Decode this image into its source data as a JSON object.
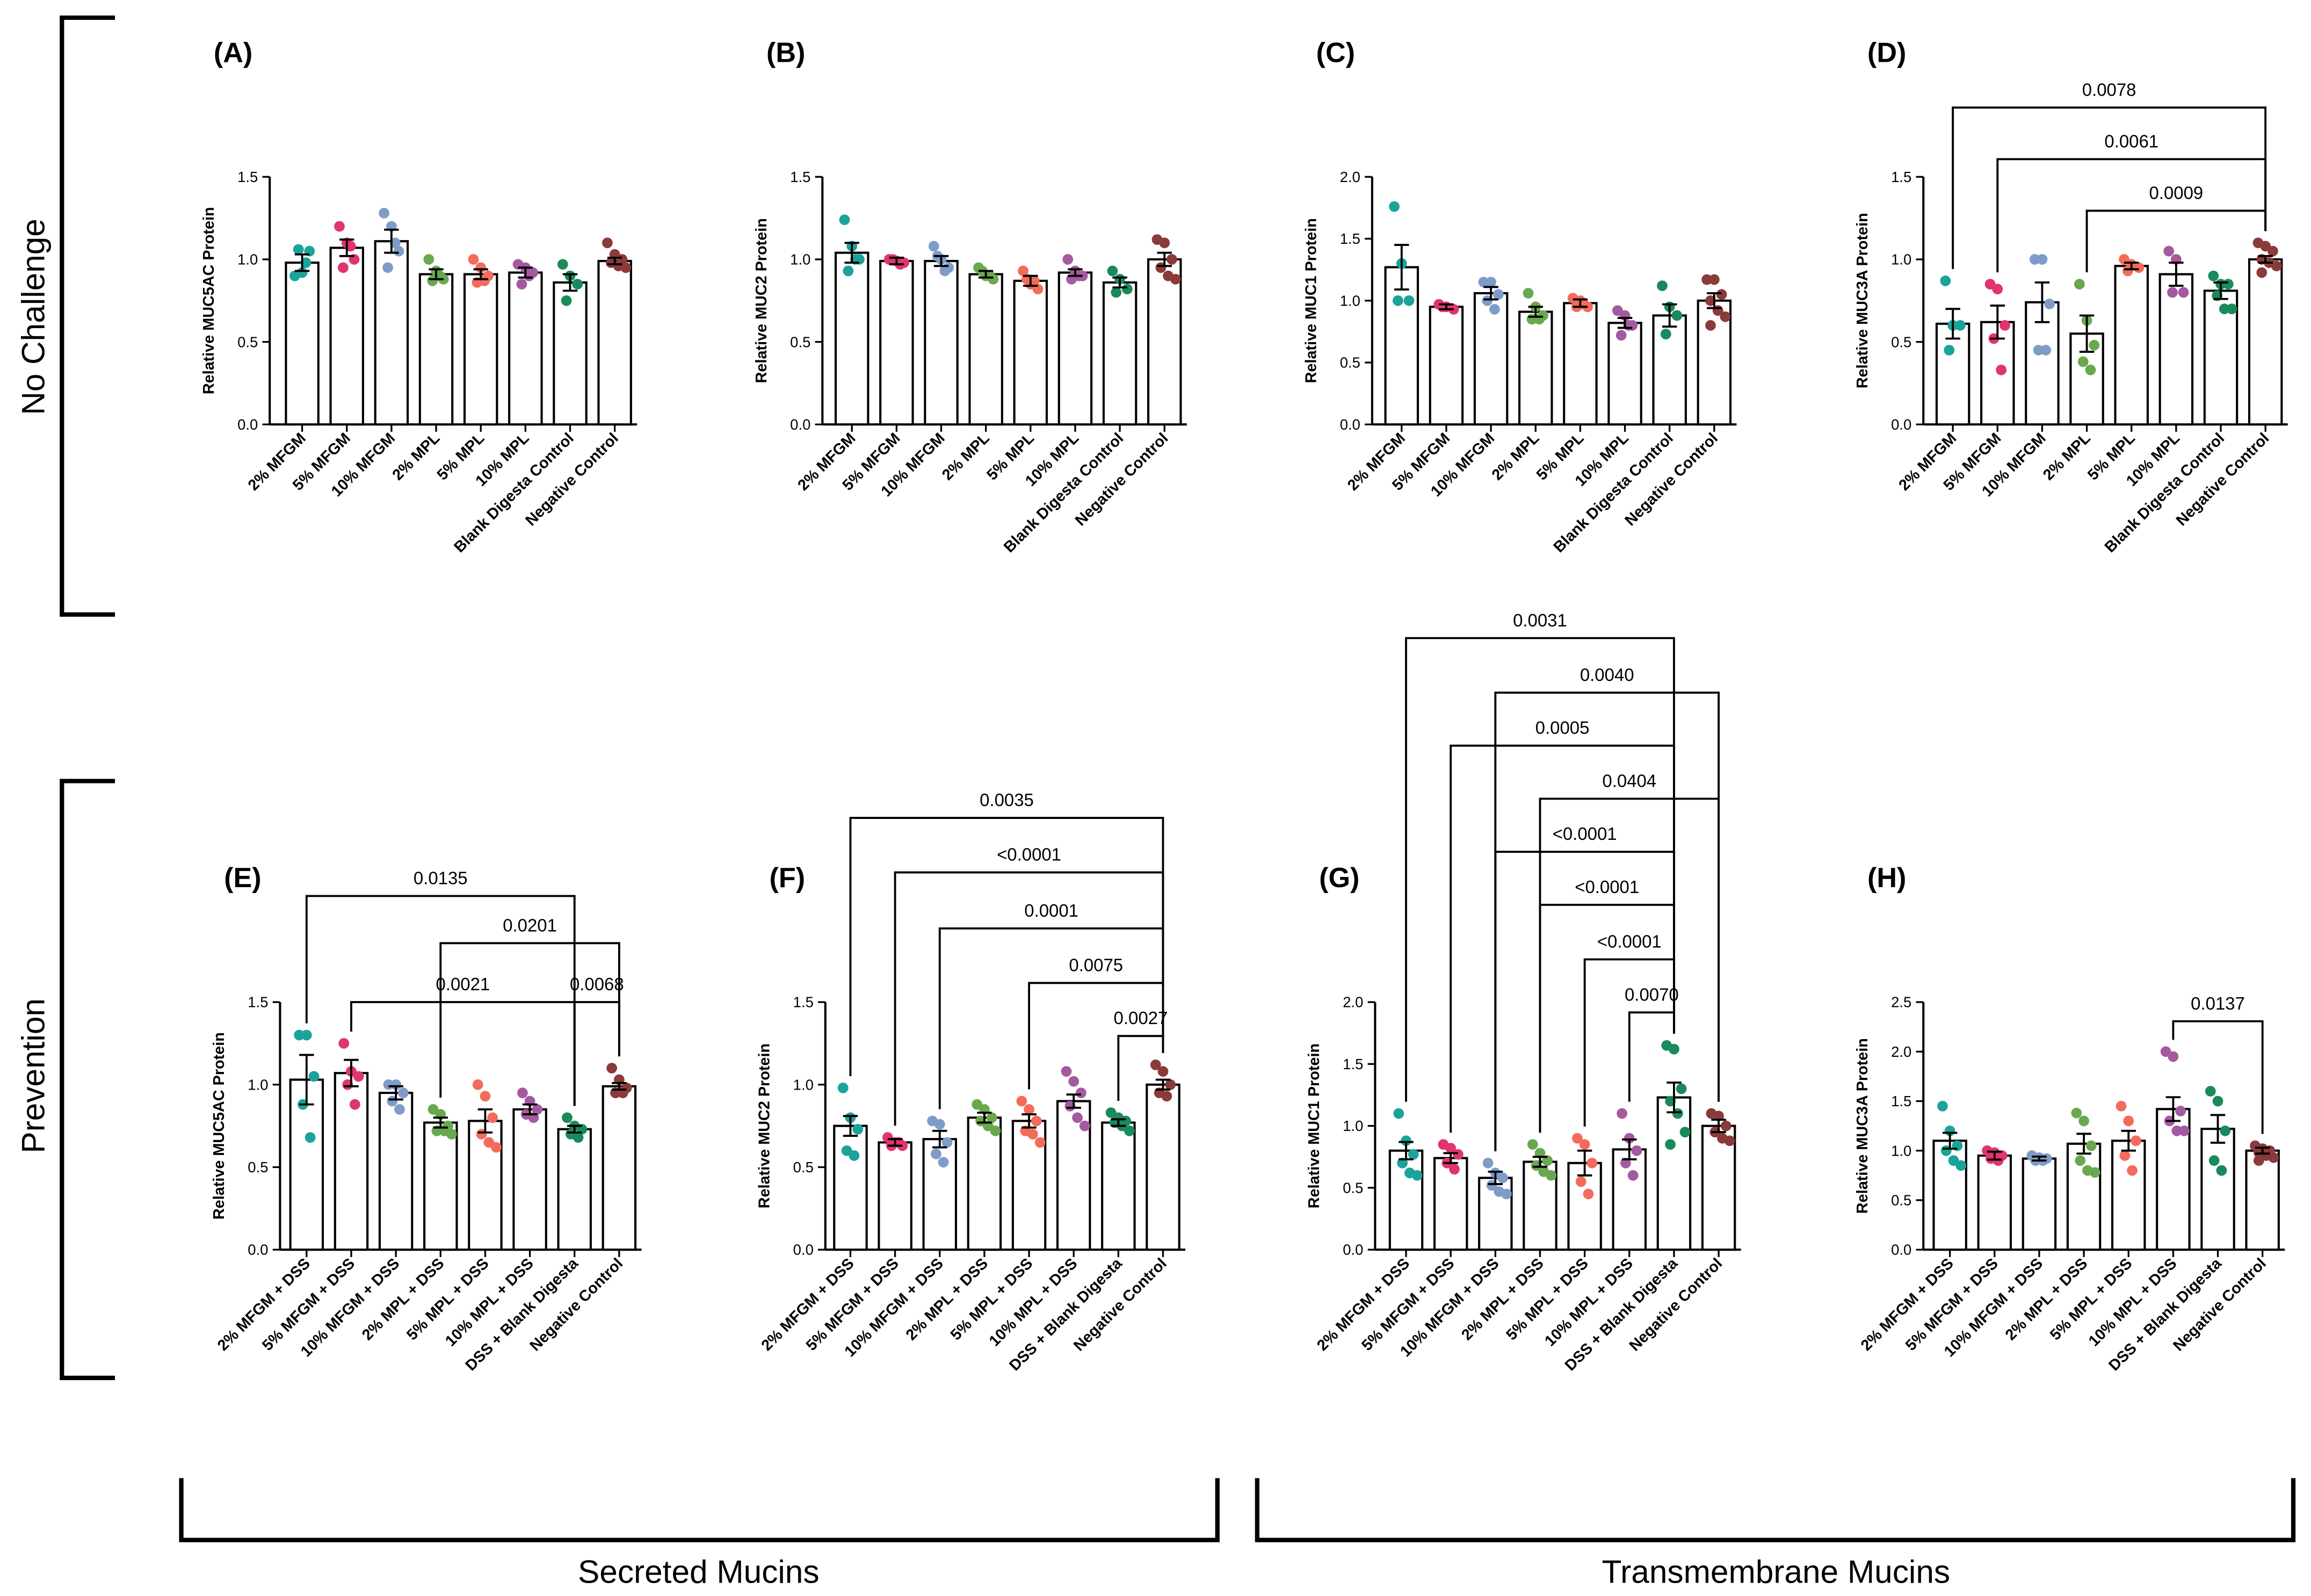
{
  "figure": {
    "row_labels": [
      "No Challenge",
      "Prevention"
    ],
    "column_labels": [
      "Secreted Mucins",
      "Transmembrane Mucins"
    ]
  },
  "chart_data": [
    {
      "type": "bar",
      "label": "(A)",
      "ylabel": "Relative MUC5AC Protein",
      "categories": [
        "2% MFGM",
        "5% MFGM",
        "10% MFGM",
        "2% MPL",
        "5% MPL",
        "10% MPL",
        "Blank Digesta Control",
        "Negative Control"
      ],
      "colors": [
        "#1aa39a",
        "#e0356d",
        "#7f9cc9",
        "#6aa84f",
        "#f36c5b",
        "#a45aa0",
        "#1a8a5a",
        "#8b3a3a"
      ],
      "values": [
        0.98,
        1.07,
        1.11,
        0.91,
        0.91,
        0.92,
        0.86,
        0.99
      ],
      "errors": [
        0.05,
        0.05,
        0.07,
        0.03,
        0.03,
        0.03,
        0.05,
        0.02
      ],
      "points": [
        [
          0.9,
          0.92,
          1.05,
          1.06,
          0.98
        ],
        [
          1.2,
          1.1,
          1.0,
          0.95,
          1.08
        ],
        [
          1.28,
          1.2,
          1.05,
          0.95,
          1.1
        ],
        [
          1.0,
          0.93,
          0.88,
          0.87,
          0.9
        ],
        [
          1.0,
          0.95,
          0.9,
          0.86,
          0.87
        ],
        [
          0.97,
          0.95,
          0.92,
          0.85,
          0.9
        ],
        [
          0.97,
          0.9,
          0.85,
          0.75
        ],
        [
          1.1,
          1.03,
          1.0,
          0.98,
          0.96,
          0.95
        ]
      ],
      "ylim": [
        0,
        1.5
      ],
      "yticks": [
        {
          "value": 0,
          "label": "0.0"
        },
        {
          "value": 0.5,
          "label": "0.5"
        },
        {
          "value": 1,
          "label": "1.0"
        },
        {
          "value": 1.5,
          "label": "1.5"
        }
      ],
      "brackets": []
    },
    {
      "type": "bar",
      "label": "(B)",
      "ylabel": "Relative MUC2 Protein",
      "categories": [
        "2% MFGM",
        "5% MFGM",
        "10% MFGM",
        "2% MPL",
        "5% MPL",
        "10% MPL",
        "Blank Digesta Control",
        "Negative Control"
      ],
      "colors": [
        "#1aa39a",
        "#e0356d",
        "#7f9cc9",
        "#6aa84f",
        "#f36c5b",
        "#a45aa0",
        "#1a8a5a",
        "#8b3a3a"
      ],
      "values": [
        1.04,
        0.99,
        0.99,
        0.91,
        0.87,
        0.92,
        0.86,
        1.0
      ],
      "errors": [
        0.06,
        0.02,
        0.03,
        0.02,
        0.03,
        0.02,
        0.03,
        0.04
      ],
      "points": [
        [
          1.24,
          1.08,
          1.0,
          0.93,
          1.0
        ],
        [
          1.0,
          0.99,
          0.98,
          1.0,
          0.97
        ],
        [
          1.08,
          1.0,
          0.95,
          1.02,
          0.93
        ],
        [
          0.95,
          0.9,
          0.88,
          0.93,
          0.9
        ],
        [
          0.93,
          0.85,
          0.82,
          0.88,
          0.87
        ],
        [
          1.0,
          0.93,
          0.9,
          0.88,
          0.9
        ],
        [
          0.93,
          0.88,
          0.82,
          0.8
        ],
        [
          1.12,
          1.1,
          1.0,
          0.95,
          0.9,
          0.88
        ]
      ],
      "ylim": [
        0,
        1.5
      ],
      "yticks": [
        {
          "value": 0,
          "label": "0.0"
        },
        {
          "value": 0.5,
          "label": "0.5"
        },
        {
          "value": 1,
          "label": "1.0"
        },
        {
          "value": 1.5,
          "label": "1.5"
        }
      ],
      "brackets": []
    },
    {
      "type": "bar",
      "label": "(C)",
      "ylabel": "Relative MUC1 Protein",
      "categories": [
        "2% MFGM",
        "5% MFGM",
        "10% MFGM",
        "2% MPL",
        "5% MPL",
        "10% MPL",
        "Blank Digesta Control",
        "Negative Control"
      ],
      "colors": [
        "#1aa39a",
        "#e0356d",
        "#7f9cc9",
        "#6aa84f",
        "#f36c5b",
        "#a45aa0",
        "#1a8a5a",
        "#8b3a3a"
      ],
      "values": [
        1.27,
        0.95,
        1.06,
        0.91,
        0.98,
        0.82,
        0.88,
        1.0
      ],
      "errors": [
        0.18,
        0.02,
        0.05,
        0.04,
        0.03,
        0.04,
        0.09,
        0.06
      ],
      "points": [
        [
          1.76,
          1.3,
          1.0,
          1.0
        ],
        [
          0.97,
          0.95,
          0.93,
          0.95
        ],
        [
          1.15,
          1.15,
          1.05,
          1.0,
          0.93
        ],
        [
          1.06,
          0.95,
          0.88,
          0.85,
          0.85
        ],
        [
          1.02,
          1.0,
          0.95,
          0.95,
          0.97
        ],
        [
          0.92,
          0.88,
          0.8,
          0.72,
          0.8
        ],
        [
          1.12,
          0.95,
          0.88,
          0.73
        ],
        [
          1.17,
          1.17,
          1.05,
          1.0,
          0.92,
          0.87,
          0.8
        ]
      ],
      "ylim": [
        0,
        2
      ],
      "yticks": [
        {
          "value": 0,
          "label": "0.0"
        },
        {
          "value": 0.5,
          "label": "0.5"
        },
        {
          "value": 1,
          "label": "1.0"
        },
        {
          "value": 1.5,
          "label": "1.5"
        },
        {
          "value": 2,
          "label": "2.0"
        }
      ],
      "brackets": []
    },
    {
      "type": "bar",
      "label": "(D)",
      "ylabel": "Relative MUC3A Protein",
      "categories": [
        "2% MFGM",
        "5% MFGM",
        "10% MFGM",
        "2% MPL",
        "5% MPL",
        "10% MPL",
        "Blank Digesta Control",
        "Negative Control"
      ],
      "colors": [
        "#1aa39a",
        "#e0356d",
        "#7f9cc9",
        "#6aa84f",
        "#f36c5b",
        "#a45aa0",
        "#1a8a5a",
        "#8b3a3a"
      ],
      "values": [
        0.61,
        0.62,
        0.74,
        0.55,
        0.96,
        0.91,
        0.81,
        1.0
      ],
      "errors": [
        0.09,
        0.1,
        0.12,
        0.11,
        0.02,
        0.07,
        0.05,
        0.02
      ],
      "points": [
        [
          0.87,
          0.6,
          0.6,
          0.45
        ],
        [
          0.85,
          0.82,
          0.6,
          0.52,
          0.33
        ],
        [
          1.0,
          1.0,
          0.73,
          0.45,
          0.45
        ],
        [
          0.85,
          0.63,
          0.48,
          0.38,
          0.33
        ],
        [
          1.0,
          0.97,
          0.95,
          0.93
        ],
        [
          1.05,
          1.0,
          0.8,
          0.8
        ],
        [
          0.9,
          0.85,
          0.85,
          0.78,
          0.7,
          0.7
        ],
        [
          1.1,
          1.08,
          1.05,
          1.0,
          0.98,
          0.96,
          0.92
        ]
      ],
      "ylim": [
        0,
        1.5
      ],
      "yticks": [
        {
          "value": 0,
          "label": "0.0"
        },
        {
          "value": 0.5,
          "label": "0.5"
        },
        {
          "value": 1,
          "label": "1.0"
        },
        {
          "value": 1.5,
          "label": "1.5"
        }
      ],
      "brackets": [
        {
          "from": 0,
          "to": 7,
          "label": "0.0078"
        },
        {
          "from": 1,
          "to": 7,
          "label": "0.0061"
        },
        {
          "from": 3,
          "to": 7,
          "label": "0.0009"
        }
      ]
    },
    {
      "type": "bar",
      "label": "(E)",
      "ylabel": "Relative MUC5AC Protein",
      "categories": [
        "2% MFGM + DSS",
        "5% MFGM + DSS",
        "10% MFGM + DSS",
        "2% MPL + DSS",
        "5% MPL + DSS",
        "10% MPL + DSS",
        "DSS + Blank Digesta",
        "Negative Control"
      ],
      "colors": [
        "#1aa39a",
        "#e0356d",
        "#7f9cc9",
        "#6aa84f",
        "#f36c5b",
        "#a45aa0",
        "#1a8a5a",
        "#8b3a3a"
      ],
      "values": [
        1.03,
        1.07,
        0.95,
        0.77,
        0.78,
        0.85,
        0.73,
        0.99
      ],
      "errors": [
        0.15,
        0.08,
        0.04,
        0.03,
        0.07,
        0.03,
        0.02,
        0.02
      ],
      "points": [
        [
          1.3,
          1.3,
          1.05,
          0.88,
          0.68
        ],
        [
          1.25,
          1.08,
          1.05,
          1.0,
          0.88
        ],
        [
          1.0,
          1.0,
          0.95,
          0.9,
          0.85
        ],
        [
          0.85,
          0.82,
          0.75,
          0.72,
          0.72,
          0.7
        ],
        [
          1.0,
          0.93,
          0.8,
          0.7,
          0.65,
          0.62
        ],
        [
          0.95,
          0.9,
          0.85,
          0.82,
          0.8
        ],
        [
          0.8,
          0.75,
          0.73,
          0.7,
          0.68
        ],
        [
          1.1,
          1.03,
          0.98,
          0.95,
          0.95
        ]
      ],
      "ylim": [
        0,
        1.5
      ],
      "yticks": [
        {
          "value": 0,
          "label": "0.0"
        },
        {
          "value": 0.5,
          "label": "0.5"
        },
        {
          "value": 1,
          "label": "1.0"
        },
        {
          "value": 1.5,
          "label": "1.5"
        }
      ],
      "brackets": [
        {
          "from": 0,
          "to": 6,
          "label": "0.0135"
        },
        {
          "from": 3,
          "to": 7,
          "label": "0.0201"
        },
        {
          "from": 1,
          "to": 6,
          "label": "0.0021"
        },
        {
          "from": 6,
          "to": 7,
          "label": "0.0068"
        }
      ]
    },
    {
      "type": "bar",
      "label": "(F)",
      "ylabel": "Relative MUC2 Protein",
      "categories": [
        "2% MFGM + DSS",
        "5% MFGM + DSS",
        "10% MFGM + DSS",
        "2% MPL + DSS",
        "5% MPL + DSS",
        "10% MPL + DSS",
        "DSS + Blank Digesta",
        "Negative Control"
      ],
      "colors": [
        "#1aa39a",
        "#e0356d",
        "#7f9cc9",
        "#6aa84f",
        "#f36c5b",
        "#a45aa0",
        "#1a8a5a",
        "#8b3a3a"
      ],
      "values": [
        0.75,
        0.65,
        0.67,
        0.8,
        0.78,
        0.9,
        0.77,
        1.0
      ],
      "errors": [
        0.06,
        0.02,
        0.05,
        0.03,
        0.04,
        0.04,
        0.02,
        0.03
      ],
      "points": [
        [
          0.98,
          0.8,
          0.73,
          0.6,
          0.57
        ],
        [
          0.68,
          0.65,
          0.63,
          0.63,
          0.65
        ],
        [
          0.78,
          0.76,
          0.65,
          0.58,
          0.53
        ],
        [
          0.88,
          0.85,
          0.8,
          0.78,
          0.75,
          0.72
        ],
        [
          0.9,
          0.85,
          0.78,
          0.72,
          0.7,
          0.65
        ],
        [
          1.08,
          1.02,
          0.95,
          0.87,
          0.8,
          0.75
        ],
        [
          0.83,
          0.8,
          0.78,
          0.77,
          0.75,
          0.72
        ],
        [
          1.12,
          1.08,
          1.0,
          0.95,
          0.93
        ]
      ],
      "ylim": [
        0,
        1.5
      ],
      "yticks": [
        {
          "value": 0,
          "label": "0.0"
        },
        {
          "value": 0.5,
          "label": "0.5"
        },
        {
          "value": 1,
          "label": "1.0"
        },
        {
          "value": 1.5,
          "label": "1.5"
        }
      ],
      "brackets": [
        {
          "from": 0,
          "to": 7,
          "label": "0.0035"
        },
        {
          "from": 1,
          "to": 7,
          "label": "<0.0001"
        },
        {
          "from": 2,
          "to": 7,
          "label": "0.0001"
        },
        {
          "from": 4,
          "to": 7,
          "label": "0.0075"
        },
        {
          "from": 6,
          "to": 7,
          "label": "0.0027"
        }
      ]
    },
    {
      "type": "bar",
      "label": "(G)",
      "ylabel": "Relative MUC1 Protein",
      "categories": [
        "2% MFGM + DSS",
        "5% MFGM + DSS",
        "10% MFGM + DSS",
        "2% MPL + DSS",
        "5% MPL + DSS",
        "10% MPL + DSS",
        "DSS + Blank Digesta",
        "Negative Control"
      ],
      "colors": [
        "#1aa39a",
        "#e0356d",
        "#7f9cc9",
        "#6aa84f",
        "#f36c5b",
        "#a45aa0",
        "#1a8a5a",
        "#8b3a3a"
      ],
      "values": [
        0.8,
        0.74,
        0.58,
        0.71,
        0.7,
        0.81,
        1.23,
        1.0
      ],
      "errors": [
        0.07,
        0.04,
        0.05,
        0.04,
        0.1,
        0.08,
        0.12,
        0.05
      ],
      "points": [
        [
          1.1,
          0.88,
          0.77,
          0.7,
          0.62,
          0.6
        ],
        [
          0.85,
          0.82,
          0.77,
          0.7,
          0.65
        ],
        [
          0.7,
          0.62,
          0.58,
          0.52,
          0.47,
          0.45
        ],
        [
          0.85,
          0.78,
          0.72,
          0.68,
          0.63,
          0.6
        ],
        [
          0.9,
          0.85,
          0.7,
          0.55,
          0.45
        ],
        [
          1.1,
          0.9,
          0.8,
          0.7,
          0.6
        ],
        [
          1.65,
          1.62,
          1.3,
          1.2,
          1.1,
          0.95,
          0.85
        ],
        [
          1.1,
          1.08,
          1.0,
          0.95,
          0.9,
          0.88
        ]
      ],
      "ylim": [
        0,
        2
      ],
      "yticks": [
        {
          "value": 0,
          "label": "0.0"
        },
        {
          "value": 0.5,
          "label": "0.5"
        },
        {
          "value": 1,
          "label": "1.0"
        },
        {
          "value": 1.5,
          "label": "1.5"
        },
        {
          "value": 2,
          "label": "2.0"
        }
      ],
      "brackets": [
        {
          "from": 0,
          "to": 6,
          "label": "0.0031"
        },
        {
          "from": 2,
          "to": 7,
          "label": "0.0040"
        },
        {
          "from": 1,
          "to": 6,
          "label": "0.0005"
        },
        {
          "from": 3,
          "to": 7,
          "label": "0.0404"
        },
        {
          "from": 2,
          "to": 6,
          "label": "<0.0001"
        },
        {
          "from": 3,
          "to": 6,
          "label": "<0.0001"
        },
        {
          "from": 4,
          "to": 6,
          "label": "<0.0001"
        },
        {
          "from": 5,
          "to": 6,
          "label": "0.0070"
        }
      ]
    },
    {
      "type": "bar",
      "label": "(H)",
      "ylabel": "Relative MUC3A Protein",
      "categories": [
        "2% MFGM + DSS",
        "5% MFGM + DSS",
        "10% MFGM + DSS",
        "2% MPL + DSS",
        "5% MPL + DSS",
        "10% MPL + DSS",
        "DSS + Blank Digesta",
        "Negative Control"
      ],
      "colors": [
        "#1aa39a",
        "#e0356d",
        "#7f9cc9",
        "#6aa84f",
        "#f36c5b",
        "#a45aa0",
        "#1a8a5a",
        "#8b3a3a"
      ],
      "values": [
        1.1,
        0.95,
        0.92,
        1.07,
        1.1,
        1.42,
        1.22,
        1.0
      ],
      "errors": [
        0.08,
        0.04,
        0.02,
        0.1,
        0.1,
        0.12,
        0.14,
        0.03
      ],
      "points": [
        [
          1.45,
          1.2,
          1.05,
          1.0,
          0.9,
          0.85
        ],
        [
          1.0,
          0.98,
          0.95,
          0.92,
          0.9
        ],
        [
          0.95,
          0.93,
          0.92,
          0.9,
          0.9
        ],
        [
          1.38,
          1.3,
          1.05,
          0.9,
          0.8,
          0.78
        ],
        [
          1.45,
          1.3,
          1.1,
          0.95,
          0.8
        ],
        [
          2.0,
          1.95,
          1.4,
          1.3,
          1.2,
          1.2
        ],
        [
          1.6,
          1.5,
          1.2,
          0.9,
          0.8
        ],
        [
          1.05,
          1.02,
          1.0,
          0.98,
          0.95,
          0.93,
          0.9
        ]
      ],
      "ylim": [
        0,
        2.5
      ],
      "yticks": [
        {
          "value": 0,
          "label": "0.0"
        },
        {
          "value": 0.5,
          "label": "0.5"
        },
        {
          "value": 1,
          "label": "1.0"
        },
        {
          "value": 1.5,
          "label": "1.5"
        },
        {
          "value": 2,
          "label": "2.0"
        },
        {
          "value": 2.5,
          "label": "2.5"
        }
      ],
      "brackets": [
        {
          "from": 5,
          "to": 7,
          "label": "0.0137"
        }
      ]
    }
  ]
}
